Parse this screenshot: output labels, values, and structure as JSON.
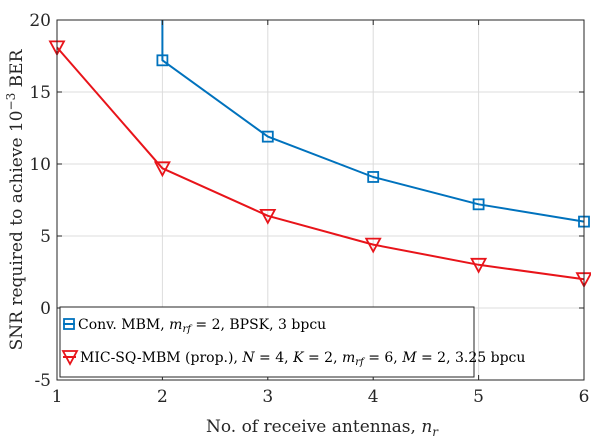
{
  "chart_data": {
    "type": "line",
    "xlabel": "No. of receive antennas, n_r",
    "xlabel_main": "No. of receive antennas, ",
    "xlabel_var": "n",
    "xlabel_sub": "r",
    "ylabel": "SNR required to achieve 10^-3 BER",
    "ylabel_pre": "SNR required to achieve 10",
    "ylabel_exp": "−3",
    "ylabel_post": " BER",
    "xlim": [
      1,
      6
    ],
    "ylim": [
      -5,
      20
    ],
    "xticks": [
      "1",
      "2",
      "3",
      "4",
      "5",
      "6"
    ],
    "yticks": [
      "-5",
      "0",
      "5",
      "10",
      "15",
      "20"
    ],
    "grid": true,
    "legend_position": "bottom-left",
    "series": [
      {
        "name": "Conv. MBM, m_rf = 2, BPSK, 3 bpcu",
        "legend_text": "Conv. MBM, m_rf = 2, BPSK, 3 bpcu",
        "color": "#0072BD",
        "marker": "square",
        "x": [
          2,
          3,
          4,
          5,
          6
        ],
        "y": [
          17.2,
          11.9,
          9.1,
          7.2,
          6.0
        ],
        "line_start": [
          2,
          20
        ],
        "marker_x": [
          2,
          3,
          4,
          5,
          6
        ]
      },
      {
        "name": "MIC-SQ-MBM (prop.), N = 4, K = 2, m_rf = 6, M = 2, 3.25 bpcu",
        "legend_text": "MIC-SQ-MBM (prop.), N = 4, K = 2, m_rf = 6, M = 2, 3.25 bpcu",
        "color": "#E8141A",
        "marker": "triangle-down",
        "x": [
          1,
          2,
          3,
          4,
          5,
          6
        ],
        "y": [
          18.1,
          9.7,
          6.4,
          4.4,
          3.0,
          2.0
        ],
        "marker_x": [
          1,
          2,
          3,
          4,
          5,
          6
        ]
      }
    ]
  }
}
